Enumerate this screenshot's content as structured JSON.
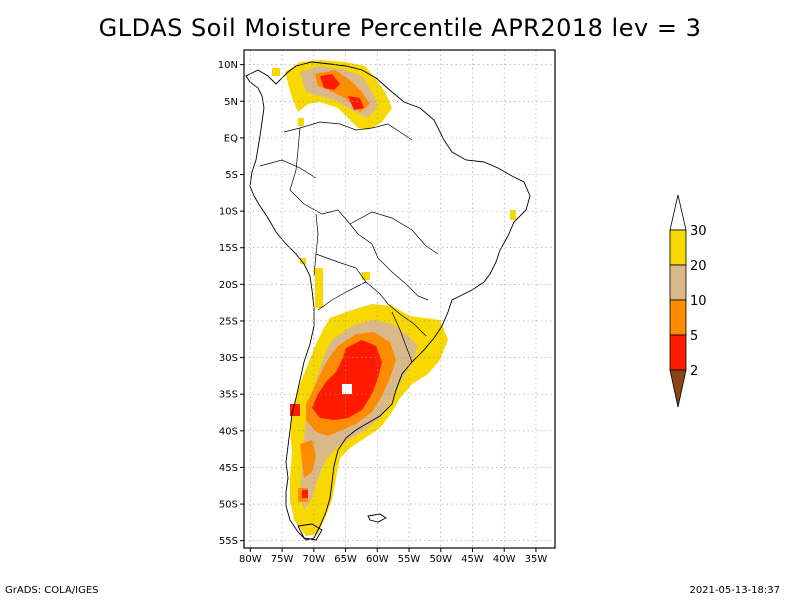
{
  "title": "GLDAS Soil Moisture Percentile APR2018 lev = 3",
  "map": {
    "lat_labels": [
      "10N",
      "5N",
      "EQ",
      "5S",
      "10S",
      "15S",
      "20S",
      "25S",
      "30S",
      "35S",
      "40S",
      "45S",
      "50S",
      "55S"
    ],
    "lat_values": [
      10,
      5,
      0,
      -5,
      -10,
      -15,
      -20,
      -25,
      -30,
      -35,
      -40,
      -45,
      -50,
      -55
    ],
    "lon_labels": [
      "80W",
      "75W",
      "70W",
      "65W",
      "60W",
      "55W",
      "50W",
      "45W",
      "40W",
      "35W"
    ],
    "lon_values": [
      -80,
      -75,
      -70,
      -65,
      -60,
      -55,
      -50,
      -45,
      -40,
      -35
    ],
    "lon_range": [
      -81,
      -32
    ],
    "lat_range": [
      -56,
      12
    ],
    "grid": true
  },
  "colorbar": {
    "labels": [
      "30",
      "20",
      "10",
      "5",
      "2"
    ],
    "colors": [
      "#ffffff",
      "#f7d800",
      "#d9b98a",
      "#ff8c00",
      "#ff1a00",
      "#8b4513"
    ]
  },
  "footer": {
    "left": "GrADS: COLA/IGES",
    "right": "2021-05-13-18:37"
  }
}
